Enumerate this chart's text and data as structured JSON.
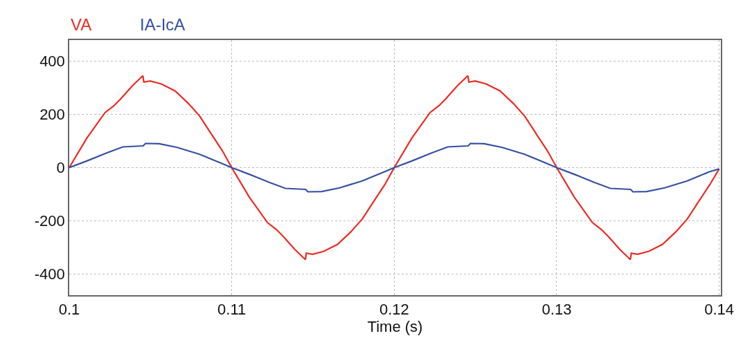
{
  "chart_data": {
    "type": "line",
    "xlabel": "Time (s)",
    "xlim": [
      0.1,
      0.1401
    ],
    "xticks": [
      0.1,
      0.11,
      0.12,
      0.13,
      0.14
    ],
    "ylim": [
      -480,
      480
    ],
    "yticks": [
      -400,
      -200,
      0,
      200,
      400
    ],
    "grid": true,
    "line_style": "solid",
    "series": [
      {
        "name": "VA",
        "color": "#ee2a24",
        "x": [
          0.1,
          0.10108,
          0.1022,
          0.10275,
          0.10317,
          0.10387,
          0.10453,
          0.10459,
          0.10498,
          0.10567,
          0.10651,
          0.10734,
          0.10804,
          0.10873,
          0.10943,
          0.11,
          0.11108,
          0.1122,
          0.11275,
          0.11317,
          0.11387,
          0.11453,
          0.11459,
          0.11498,
          0.11567,
          0.11651,
          0.11734,
          0.11804,
          0.11873,
          0.11943,
          0.12,
          0.12108,
          0.1222,
          0.12275,
          0.12317,
          0.12387,
          0.12453,
          0.12459,
          0.12498,
          0.12567,
          0.12651,
          0.12734,
          0.12804,
          0.12873,
          0.12943,
          0.13,
          0.13108,
          0.1322,
          0.13275,
          0.13317,
          0.13387,
          0.13453,
          0.13459,
          0.13498,
          0.13567,
          0.13651,
          0.13734,
          0.13804,
          0.13873,
          0.13943,
          0.14
        ],
        "values": [
          0,
          111,
          207,
          233,
          259,
          307,
          346,
          322,
          326,
          315,
          289,
          241,
          193,
          128,
          63,
          0,
          -111,
          -207,
          -233,
          -259,
          -307,
          -346,
          -322,
          -326,
          -315,
          -289,
          -241,
          -193,
          -128,
          -63,
          0,
          111,
          207,
          233,
          259,
          307,
          346,
          322,
          326,
          315,
          289,
          241,
          193,
          128,
          63,
          0,
          -111,
          -207,
          -233,
          -259,
          -307,
          -346,
          -322,
          -326,
          -315,
          -289,
          -241,
          -193,
          -128,
          -63,
          -5
        ]
      },
      {
        "name": "IA-IcA",
        "color": "#3550a4",
        "x": [
          0.1,
          0.10108,
          0.10233,
          0.1033,
          0.10455,
          0.10469,
          0.10553,
          0.10664,
          0.10803,
          0.10942,
          0.11,
          0.11108,
          0.11233,
          0.1133,
          0.11455,
          0.11469,
          0.11553,
          0.11664,
          0.11803,
          0.11942,
          0.12,
          0.12108,
          0.12233,
          0.1233,
          0.12455,
          0.12469,
          0.12553,
          0.12664,
          0.12803,
          0.12942,
          0.13,
          0.13108,
          0.13233,
          0.1333,
          0.13455,
          0.13469,
          0.13553,
          0.13664,
          0.13803,
          0.13942,
          0.14
        ],
        "values": [
          0,
          25,
          56,
          78,
          82,
          91,
          90,
          76,
          50,
          15,
          0,
          -25,
          -56,
          -78,
          -82,
          -91,
          -90,
          -76,
          -50,
          -15,
          0,
          25,
          56,
          78,
          82,
          91,
          90,
          76,
          50,
          15,
          0,
          -25,
          -56,
          -78,
          -82,
          -91,
          -90,
          -76,
          -50,
          -15,
          -5
        ]
      }
    ]
  }
}
